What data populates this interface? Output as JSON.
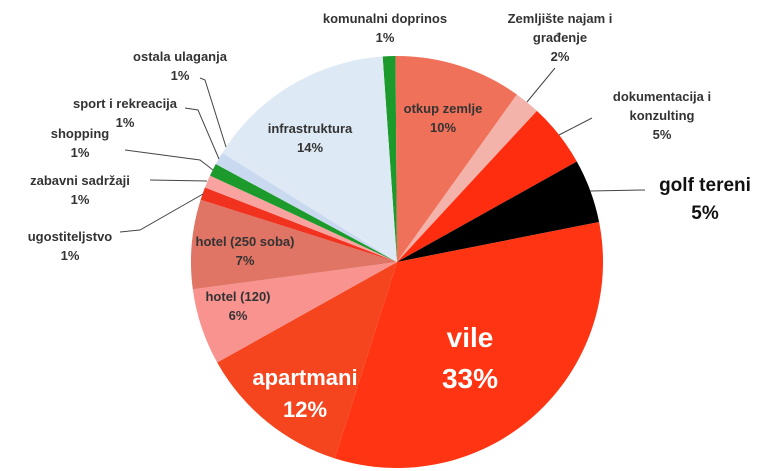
{
  "chart_data": {
    "type": "pie",
    "categories": [
      "komunalni doprinos",
      "otkup zemlje",
      "Zemljište najam i građenje",
      "dokumentacija i konzulting",
      "golf tereni",
      "vile",
      "apartmani",
      "hotel (120)",
      "hotel (250 soba)",
      "ugostiteljstvo",
      "zabavni sadržaji",
      "shopping",
      "sport i rekreacija",
      "ostala ulaganja",
      "infrastruktura"
    ],
    "values": [
      1,
      10,
      2,
      5,
      5,
      33,
      12,
      6,
      7,
      1,
      1,
      1,
      1,
      1,
      14
    ],
    "value_labels": [
      "1%",
      "10%",
      "2%",
      "5%",
      "5%",
      "33%",
      "12%",
      "6%",
      "7%",
      "1%",
      "1%",
      "1%",
      "1%",
      "1%",
      "14%"
    ],
    "colors": [
      "#1c9a2c",
      "#f0715a",
      "#f4b3aa",
      "#ff2d0f",
      "#000000",
      "#ff3412",
      "#f5451f",
      "#f8938f",
      "#e07465",
      "#f0321e",
      "#f8a3a0",
      "#1c9a2c",
      "#c9d9f0",
      "#dfe9f5",
      "#dde9f4"
    ]
  }
}
